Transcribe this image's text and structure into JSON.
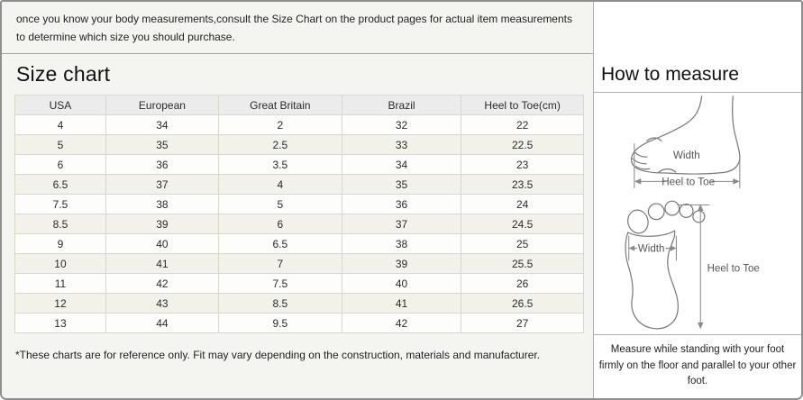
{
  "intro": {
    "text": "once you know your body measurements,consult the Size Chart on the product pages for actual item measurements to determine which size you should purchase."
  },
  "size_chart": {
    "title": "Size chart",
    "columns": [
      "USA",
      "European",
      "Great Britain",
      "Brazil",
      "Heel to Toe(cm)"
    ],
    "rows": [
      [
        "4",
        "34",
        "2",
        "32",
        "22"
      ],
      [
        "5",
        "35",
        "2.5",
        "33",
        "22.5"
      ],
      [
        "6",
        "36",
        "3.5",
        "34",
        "23"
      ],
      [
        "6.5",
        "37",
        "4",
        "35",
        "23.5"
      ],
      [
        "7.5",
        "38",
        "5",
        "36",
        "24"
      ],
      [
        "8.5",
        "39",
        "6",
        "37",
        "24.5"
      ],
      [
        "9",
        "40",
        "6.5",
        "38",
        "25"
      ],
      [
        "10",
        "41",
        "7",
        "39",
        "25.5"
      ],
      [
        "11",
        "42",
        "7.5",
        "40",
        "26"
      ],
      [
        "12",
        "43",
        "8.5",
        "41",
        "26.5"
      ],
      [
        "13",
        "44",
        "9.5",
        "42",
        "27"
      ]
    ],
    "footnote": "*These charts are for reference only. Fit may vary depending on the construction, materials and manufacturer."
  },
  "how_to_measure": {
    "title": "How to measure",
    "side_view": {
      "width_label": "Width",
      "length_label": "Heel to Toe"
    },
    "top_view": {
      "width_label": "Width",
      "length_label": "Heel to Toe"
    },
    "instruction": "Measure while standing with your foot firmly on the floor and parallel to your other foot."
  },
  "colors": {
    "panel_border": "#8f8f8f",
    "divider": "#b0b0b0",
    "table_border": "#d9d9c3",
    "header_bg": "#ececec",
    "stripe_bg": "#f2f2eb",
    "row_bg": "#fdfdfc",
    "left_bg": "#f4f4f1",
    "text": "#1c1c1c",
    "diagram_stroke": "#777777"
  }
}
